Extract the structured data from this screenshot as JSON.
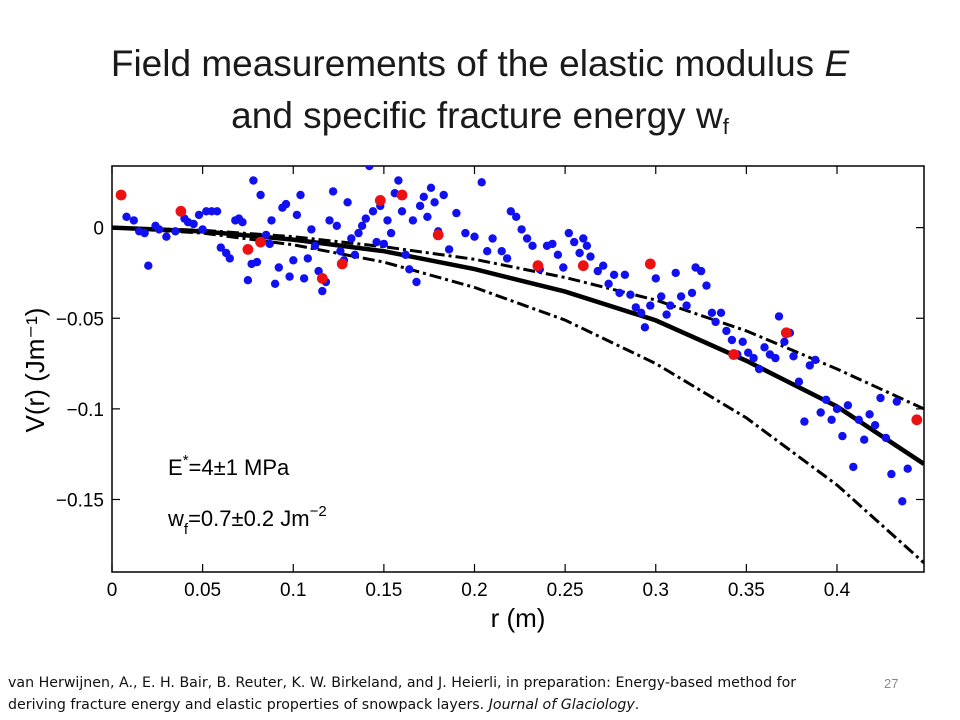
{
  "slide": {
    "title_line1_prefix": "Field measurements of the elastic modulus ",
    "title_line1_var": "E",
    "title_line2_prefix": "and specific fracture energy w",
    "title_line2_sub": "f",
    "citation_text": "van Herwijnen, A., E. H. Bair, B. Reuter, K. W. Birkeland, and J. Heierli, in preparation: Energy-based method for deriving fracture energy and elastic properties of snowpack layers. ",
    "citation_journal": "Journal of Glaciology",
    "citation_end": ".",
    "slide_number": "27"
  },
  "chart_data": {
    "type": "scatter",
    "xlabel": "r (m)",
    "ylabel": "V(r) (Jm⁻¹)",
    "xlim": [
      0,
      0.448
    ],
    "ylim": [
      -0.19,
      0.034
    ],
    "xticks": [
      0,
      0.05,
      0.1,
      0.15,
      0.2,
      0.25,
      0.3,
      0.35,
      0.4
    ],
    "xtick_labels": [
      "0",
      "0.05",
      "0.1",
      "0.15",
      "0.2",
      "0.25",
      "0.3",
      "0.35",
      "0.4"
    ],
    "yticks": [
      0,
      -0.05,
      -0.1,
      -0.15
    ],
    "ytick_labels": [
      "0",
      "−0.05",
      "−0.1",
      "−0.15"
    ],
    "grid": false,
    "annotations": [
      {
        "lead": "E",
        "sup": "*",
        "rest": "=4±1 MPa"
      },
      {
        "lead": "w",
        "sub": "f",
        "rest": "=0.7±0.2 Jm",
        "sup2": "−2"
      }
    ],
    "colors": {
      "blue_points": "#1010f0",
      "red_points": "#ee1111",
      "curves": "#000000"
    },
    "series": [
      {
        "kind": "blue-points",
        "points": [
          [
            0.008,
            0.006
          ],
          [
            0.012,
            0.004
          ],
          [
            0.015,
            -0.002
          ],
          [
            0.018,
            -0.003
          ],
          [
            0.02,
            -0.021
          ],
          [
            0.024,
            0.001
          ],
          [
            0.026,
            -0.001
          ],
          [
            0.03,
            -0.005
          ],
          [
            0.035,
            -0.002
          ],
          [
            0.04,
            0.005
          ],
          [
            0.042,
            0.003
          ],
          [
            0.045,
            0.002
          ],
          [
            0.048,
            0.007
          ],
          [
            0.05,
            -0.001
          ],
          [
            0.052,
            0.009
          ],
          [
            0.055,
            0.009
          ],
          [
            0.058,
            0.009
          ],
          [
            0.06,
            -0.011
          ],
          [
            0.063,
            -0.014
          ],
          [
            0.065,
            -0.017
          ],
          [
            0.068,
            0.004
          ],
          [
            0.07,
            0.005
          ],
          [
            0.072,
            0.003
          ],
          [
            0.075,
            -0.029
          ],
          [
            0.077,
            -0.02
          ],
          [
            0.078,
            0.026
          ],
          [
            0.08,
            -0.019
          ],
          [
            0.082,
            0.018
          ],
          [
            0.085,
            -0.004
          ],
          [
            0.087,
            -0.009
          ],
          [
            0.088,
            0.004
          ],
          [
            0.09,
            -0.031
          ],
          [
            0.092,
            -0.022
          ],
          [
            0.094,
            0.011
          ],
          [
            0.096,
            0.013
          ],
          [
            0.098,
            -0.027
          ],
          [
            0.1,
            -0.018
          ],
          [
            0.102,
            0.007
          ],
          [
            0.104,
            0.018
          ],
          [
            0.106,
            -0.028
          ],
          [
            0.108,
            -0.017
          ],
          [
            0.11,
            -0.001
          ],
          [
            0.112,
            -0.01
          ],
          [
            0.114,
            -0.024
          ],
          [
            0.116,
            -0.035
          ],
          [
            0.118,
            -0.03
          ],
          [
            0.12,
            0.004
          ],
          [
            0.122,
            0.02
          ],
          [
            0.124,
            0.001
          ],
          [
            0.126,
            -0.013
          ],
          [
            0.128,
            -0.018
          ],
          [
            0.13,
            0.014
          ],
          [
            0.132,
            -0.006
          ],
          [
            0.134,
            -0.015
          ],
          [
            0.136,
            -0.003
          ],
          [
            0.138,
            0.001
          ],
          [
            0.14,
            0.005
          ],
          [
            0.142,
            0.034
          ],
          [
            0.144,
            0.009
          ],
          [
            0.146,
            -0.008
          ],
          [
            0.148,
            0.012
          ],
          [
            0.15,
            -0.009
          ],
          [
            0.152,
            0.004
          ],
          [
            0.154,
            -0.003
          ],
          [
            0.156,
            0.019
          ],
          [
            0.158,
            0.026
          ],
          [
            0.16,
            0.009
          ],
          [
            0.162,
            -0.015
          ],
          [
            0.164,
            -0.023
          ],
          [
            0.166,
            0.004
          ],
          [
            0.168,
            -0.03
          ],
          [
            0.17,
            0.012
          ],
          [
            0.172,
            0.017
          ],
          [
            0.174,
            0.006
          ],
          [
            0.176,
            0.022
          ],
          [
            0.178,
            0.014
          ],
          [
            0.18,
            -0.002
          ],
          [
            0.183,
            0.018
          ],
          [
            0.186,
            -0.012
          ],
          [
            0.19,
            0.008
          ],
          [
            0.195,
            -0.003
          ],
          [
            0.2,
            -0.005
          ],
          [
            0.204,
            0.025
          ],
          [
            0.207,
            -0.013
          ],
          [
            0.21,
            -0.006
          ],
          [
            0.215,
            -0.013
          ],
          [
            0.218,
            -0.017
          ],
          [
            0.22,
            0.009
          ],
          [
            0.223,
            0.006
          ],
          [
            0.226,
            -0.001
          ],
          [
            0.229,
            -0.006
          ],
          [
            0.232,
            -0.01
          ],
          [
            0.236,
            -0.023
          ],
          [
            0.24,
            -0.01
          ],
          [
            0.243,
            -0.009
          ],
          [
            0.246,
            -0.015
          ],
          [
            0.249,
            -0.022
          ],
          [
            0.252,
            -0.003
          ],
          [
            0.255,
            -0.008
          ],
          [
            0.258,
            -0.014
          ],
          [
            0.26,
            -0.006
          ],
          [
            0.262,
            -0.01
          ],
          [
            0.264,
            -0.016
          ],
          [
            0.268,
            -0.024
          ],
          [
            0.271,
            -0.021
          ],
          [
            0.274,
            -0.031
          ],
          [
            0.277,
            -0.026
          ],
          [
            0.28,
            -0.036
          ],
          [
            0.283,
            -0.026
          ],
          [
            0.286,
            -0.037
          ],
          [
            0.289,
            -0.044
          ],
          [
            0.292,
            -0.047
          ],
          [
            0.294,
            -0.055
          ],
          [
            0.297,
            -0.043
          ],
          [
            0.3,
            -0.028
          ],
          [
            0.303,
            -0.038
          ],
          [
            0.306,
            -0.048
          ],
          [
            0.308,
            -0.043
          ],
          [
            0.311,
            -0.025
          ],
          [
            0.314,
            -0.038
          ],
          [
            0.317,
            -0.043
          ],
          [
            0.32,
            -0.036
          ],
          [
            0.322,
            -0.022
          ],
          [
            0.325,
            -0.024
          ],
          [
            0.328,
            -0.032
          ],
          [
            0.331,
            -0.047
          ],
          [
            0.333,
            -0.052
          ],
          [
            0.336,
            -0.047
          ],
          [
            0.339,
            -0.057
          ],
          [
            0.342,
            -0.062
          ],
          [
            0.345,
            -0.07
          ],
          [
            0.348,
            -0.063
          ],
          [
            0.351,
            -0.069
          ],
          [
            0.354,
            -0.072
          ],
          [
            0.357,
            -0.078
          ],
          [
            0.36,
            -0.066
          ],
          [
            0.363,
            -0.07
          ],
          [
            0.366,
            -0.072
          ],
          [
            0.368,
            -0.049
          ],
          [
            0.371,
            -0.063
          ],
          [
            0.374,
            -0.058
          ],
          [
            0.376,
            -0.071
          ],
          [
            0.379,
            -0.085
          ],
          [
            0.382,
            -0.107
          ],
          [
            0.385,
            -0.076
          ],
          [
            0.388,
            -0.073
          ],
          [
            0.391,
            -0.102
          ],
          [
            0.394,
            -0.095
          ],
          [
            0.397,
            -0.106
          ],
          [
            0.4,
            -0.1
          ],
          [
            0.403,
            -0.115
          ],
          [
            0.406,
            -0.098
          ],
          [
            0.409,
            -0.132
          ],
          [
            0.412,
            -0.106
          ],
          [
            0.415,
            -0.117
          ],
          [
            0.418,
            -0.103
          ],
          [
            0.421,
            -0.109
          ],
          [
            0.424,
            -0.094
          ],
          [
            0.427,
            -0.116
          ],
          [
            0.43,
            -0.136
          ],
          [
            0.433,
            -0.096
          ],
          [
            0.436,
            -0.151
          ],
          [
            0.439,
            -0.133
          ]
        ]
      },
      {
        "kind": "red-points",
        "points": [
          [
            0.005,
            0.018
          ],
          [
            0.038,
            0.009
          ],
          [
            0.075,
            -0.012
          ],
          [
            0.082,
            -0.008
          ],
          [
            0.116,
            -0.028
          ],
          [
            0.127,
            -0.02
          ],
          [
            0.148,
            0.015
          ],
          [
            0.16,
            0.018
          ],
          [
            0.18,
            -0.004
          ],
          [
            0.235,
            -0.021
          ],
          [
            0.26,
            -0.021
          ],
          [
            0.297,
            -0.02
          ],
          [
            0.343,
            -0.07
          ],
          [
            0.372,
            -0.058
          ],
          [
            0.444,
            -0.106
          ]
        ]
      },
      {
        "kind": "fit-curve",
        "style": "solid",
        "points": [
          [
            0,
            0
          ],
          [
            0.05,
            -0.0021
          ],
          [
            0.1,
            -0.0066
          ],
          [
            0.15,
            -0.013
          ],
          [
            0.2,
            -0.0229
          ],
          [
            0.25,
            -0.0353
          ],
          [
            0.3,
            -0.0512
          ],
          [
            0.35,
            -0.0735
          ],
          [
            0.4,
            -0.0987
          ],
          [
            0.448,
            -0.1304
          ]
        ]
      },
      {
        "kind": "upper-bound-curve",
        "style": "dashdot",
        "points": [
          [
            0,
            0
          ],
          [
            0.05,
            -0.0015
          ],
          [
            0.1,
            -0.005
          ],
          [
            0.15,
            -0.0105
          ],
          [
            0.2,
            -0.0175
          ],
          [
            0.25,
            -0.0275
          ],
          [
            0.3,
            -0.04
          ],
          [
            0.35,
            -0.057
          ],
          [
            0.4,
            -0.078
          ],
          [
            0.448,
            -0.1
          ]
        ]
      },
      {
        "kind": "lower-bound-curve",
        "style": "dashdot",
        "points": [
          [
            0,
            0
          ],
          [
            0.05,
            -0.003
          ],
          [
            0.1,
            -0.0095
          ],
          [
            0.15,
            -0.019
          ],
          [
            0.2,
            -0.033
          ],
          [
            0.25,
            -0.051
          ],
          [
            0.3,
            -0.075
          ],
          [
            0.35,
            -0.105
          ],
          [
            0.4,
            -0.142
          ],
          [
            0.448,
            -0.185
          ]
        ]
      }
    ]
  }
}
